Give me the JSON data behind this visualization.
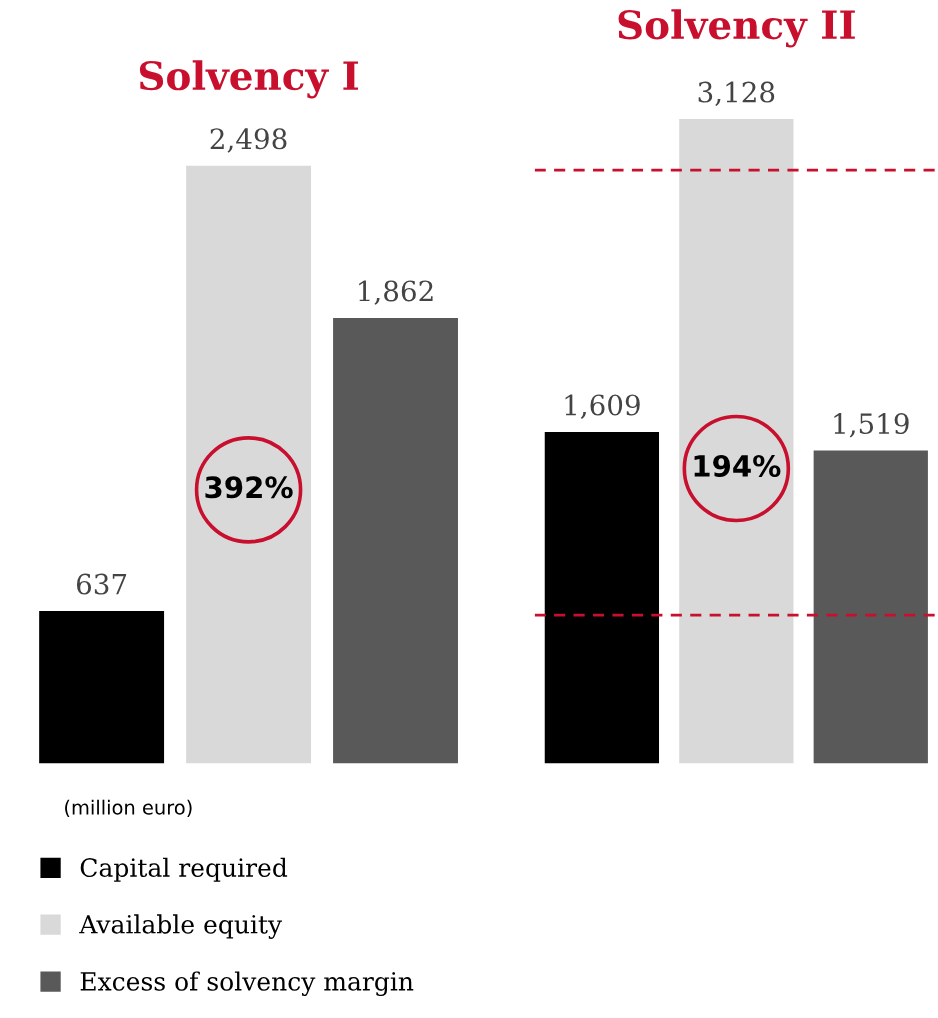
{
  "chart_data": [
    {
      "type": "bar",
      "title": "Solvency I",
      "categories": [
        null
      ],
      "series": [
        {
          "name": "Capital required",
          "color": "#000000",
          "values": [
            637
          ],
          "value_labels": [
            "637"
          ]
        },
        {
          "name": "Available equity",
          "color": "#d9d9d9",
          "values": [
            2498
          ],
          "value_labels": [
            "2,498"
          ]
        },
        {
          "name": "Excess of solvency margin",
          "color": "#595959",
          "values": [
            1862
          ],
          "value_labels": [
            "1,862"
          ]
        }
      ],
      "annotations": [
        "392%",
        "(million euro)"
      ],
      "legend": "bottom",
      "grid": false
    },
    {
      "type": "bar",
      "title": "Solvency II",
      "categories": [
        null
      ],
      "series": [
        {
          "color": "#000000",
          "values": [
            1609
          ],
          "value_labels": [
            "1,609"
          ]
        },
        {
          "color": "#d9d9d9",
          "values": [
            3128
          ],
          "value_labels": [
            "3,128"
          ]
        },
        {
          "color": "#595959",
          "values": [
            1519
          ],
          "value_labels": [
            "1,519"
          ]
        }
      ],
      "annotations": [
        "194%"
      ],
      "legend": false,
      "grid": false,
      "ref_lines": [
        {
          "axis": "y",
          "value": 720,
          "color": "#c8102e",
          "line_style": "dashed"
        },
        {
          "axis": "y",
          "value": 2880,
          "color": "#c8102e",
          "line_style": "dashed"
        }
      ]
    }
  ]
}
